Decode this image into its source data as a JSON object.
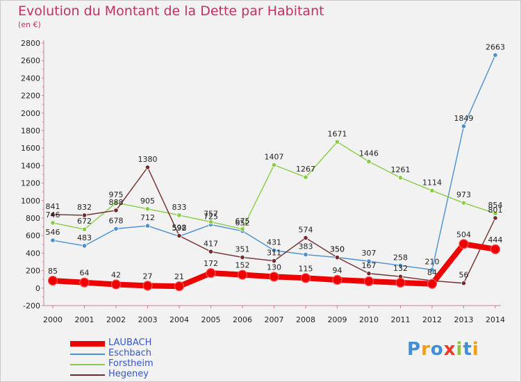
{
  "header": {
    "title": "Evolution du Montant de la Dette par Habitant",
    "unit": "(en €)"
  },
  "logo": {
    "text": "Proxiti",
    "letters": [
      {
        "ch": "P",
        "color": "#3f8fd6"
      },
      {
        "ch": "r",
        "color": "#f39c1e"
      },
      {
        "ch": "o",
        "color": "#3f8fd6"
      },
      {
        "ch": "x",
        "color": "#e8392b"
      },
      {
        "ch": "i",
        "color": "#8cc63f"
      },
      {
        "ch": "t",
        "color": "#3f8fd6"
      },
      {
        "ch": "i",
        "color": "#f39c1e"
      }
    ]
  },
  "chart_data": {
    "type": "line",
    "x": [
      "2000",
      "2001",
      "2002",
      "2003",
      "2004",
      "2005",
      "2006",
      "2007",
      "2008",
      "2009",
      "2010",
      "2011",
      "2012",
      "2013",
      "2014"
    ],
    "ylim": [
      -200,
      2800
    ],
    "yticks": [
      -200,
      0,
      200,
      400,
      600,
      800,
      1000,
      1200,
      1400,
      1600,
      1800,
      2000,
      2200,
      2400,
      2600,
      2800
    ],
    "grid": false,
    "legend_position": "bottom-left",
    "series": [
      {
        "name": "LAUBACH",
        "color": "#ee0000",
        "thick": true,
        "values": [
          85,
          64,
          42,
          27,
          21,
          172,
          152,
          130,
          115,
          94,
          78,
          62,
          48,
          504,
          444
        ],
        "labels": [
          "85",
          "64",
          "42",
          "27",
          "21",
          "172",
          "152",
          "130",
          "115",
          "94",
          "",
          "",
          "",
          "504",
          "444"
        ]
      },
      {
        "name": "Eschbach",
        "color": "#4a8fd0",
        "thick": false,
        "values": [
          546,
          483,
          678,
          712,
          592,
          725,
          652,
          431,
          383,
          350,
          307,
          258,
          210,
          1849,
          2663
        ],
        "labels": [
          "546",
          "483",
          "678",
          "712",
          "592",
          "725",
          "652",
          "431",
          "383",
          "350",
          "307",
          "258",
          "210",
          "1849",
          "2663"
        ]
      },
      {
        "name": "Forstheim",
        "color": "#88cc44",
        "thick": false,
        "values": [
          746,
          672,
          975,
          905,
          833,
          757,
          675,
          1407,
          1267,
          1671,
          1446,
          1261,
          1114,
          973,
          854
        ],
        "labels": [
          "746",
          "672",
          "975",
          "905",
          "833",
          "757",
          "675",
          "1407",
          "1267",
          "1671",
          "1446",
          "1261",
          "1114",
          "973",
          "854"
        ]
      },
      {
        "name": "Hegeney",
        "color": "#702b2b",
        "thick": false,
        "values": [
          841,
          832,
          888,
          1380,
          598,
          417,
          351,
          311,
          574,
          350,
          167,
          132,
          84,
          56,
          801
        ],
        "labels": [
          "841",
          "832",
          "888",
          "1380",
          "598",
          "417",
          "351",
          "311",
          "574",
          "350",
          "167",
          "132",
          "84",
          "56",
          "801"
        ]
      }
    ]
  }
}
